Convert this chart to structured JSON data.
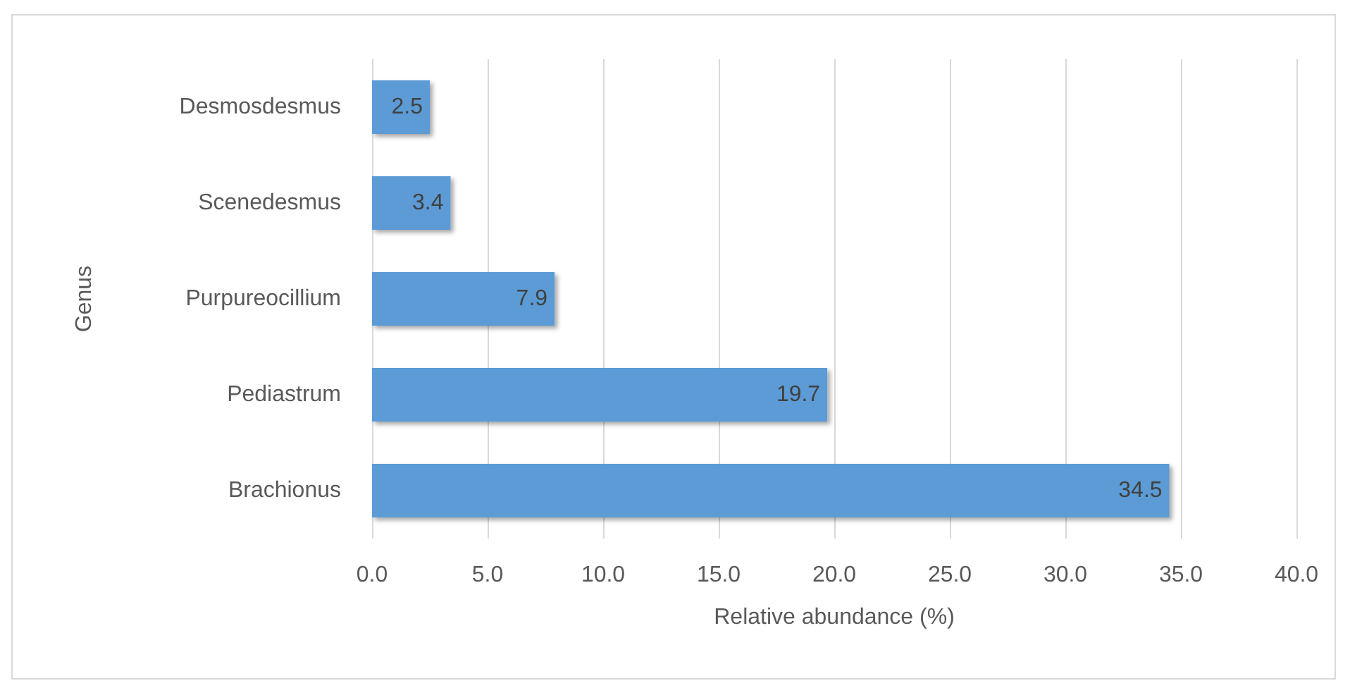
{
  "chart_data": {
    "type": "bar",
    "orientation": "horizontal",
    "xlabel": "Relative abundance (%)",
    "ylabel": "Genus",
    "categories": [
      "Desmosdesmus",
      "Scenedesmus",
      "Purpureocillium",
      "Pediastrum",
      "Brachionus"
    ],
    "values": [
      2.5,
      3.4,
      7.9,
      19.7,
      34.5
    ],
    "color": "#5b9bd5",
    "data_labels": true,
    "grid": "x",
    "xlim": [
      0,
      40
    ],
    "xticks": [
      {
        "value": 0,
        "label": "0.0"
      },
      {
        "value": 5,
        "label": "5.0"
      },
      {
        "value": 10,
        "label": "10.0"
      },
      {
        "value": 15,
        "label": "15.0"
      },
      {
        "value": 20,
        "label": "20.0"
      },
      {
        "value": 25,
        "label": "25.0"
      },
      {
        "value": 30,
        "label": "30.0"
      },
      {
        "value": 35,
        "label": "35.0"
      },
      {
        "value": 40,
        "label": "40.0"
      }
    ]
  }
}
